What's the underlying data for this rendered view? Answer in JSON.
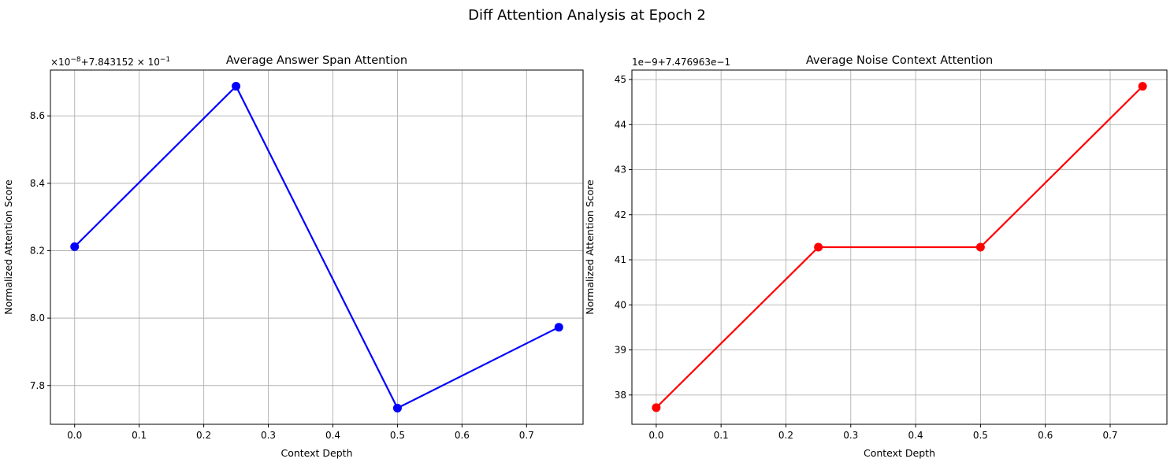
{
  "figure": {
    "suptitle": "Diff Attention Analysis at Epoch 2"
  },
  "chart_data": [
    {
      "type": "line",
      "title": "Average Answer Span Attention",
      "xlabel": "Context Depth",
      "ylabel": "Normalized Attention Score",
      "offset_label": {
        "main": "×10",
        "exp": "−8",
        "tail": "+7.843152 × 10",
        "tail_exp": "−1"
      },
      "x": [
        0.0,
        0.25,
        0.5,
        0.75
      ],
      "series": [
        {
          "values": [
            8.212,
            8.688,
            7.733,
            7.973
          ],
          "color": "#0000ff"
        }
      ],
      "xlim": [
        -0.0375,
        0.7875
      ],
      "ylim": [
        7.685,
        8.736
      ],
      "xticks": [
        0.0,
        0.1,
        0.2,
        0.3,
        0.4,
        0.5,
        0.6,
        0.7
      ],
      "xtick_labels": [
        "0.0",
        "0.1",
        "0.2",
        "0.3",
        "0.4",
        "0.5",
        "0.6",
        "0.7"
      ],
      "yticks": [
        7.8,
        8.0,
        8.2,
        8.4,
        8.6
      ],
      "ytick_labels": [
        "7.8",
        "8.0",
        "8.2",
        "8.4",
        "8.6"
      ],
      "grid": true,
      "marker": "circle"
    },
    {
      "type": "line",
      "title": "Average Noise Context Attention",
      "xlabel": "Context Depth",
      "ylabel": "Normalized Attention Score",
      "offset_label": {
        "main": "1e−9+7.476963e−1"
      },
      "x": [
        0.0,
        0.25,
        0.5,
        0.75
      ],
      "series": [
        {
          "values": [
            37.72,
            41.28,
            41.28,
            44.85
          ],
          "color": "#ff0000"
        }
      ],
      "xlim": [
        -0.0375,
        0.7875
      ],
      "ylim": [
        37.35,
        45.21
      ],
      "xticks": [
        0.0,
        0.1,
        0.2,
        0.3,
        0.4,
        0.5,
        0.6,
        0.7
      ],
      "xtick_labels": [
        "0.0",
        "0.1",
        "0.2",
        "0.3",
        "0.4",
        "0.5",
        "0.6",
        "0.7"
      ],
      "yticks": [
        38,
        39,
        40,
        41,
        42,
        43,
        44,
        45
      ],
      "ytick_labels": [
        "38",
        "39",
        "40",
        "41",
        "42",
        "43",
        "44",
        "45"
      ],
      "grid": true,
      "marker": "circle"
    }
  ]
}
